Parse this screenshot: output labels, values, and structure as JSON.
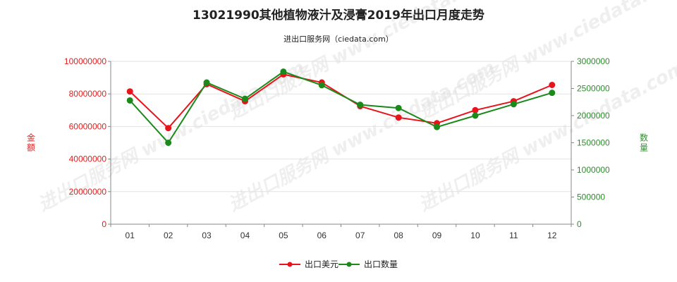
{
  "chart_data": {
    "type": "line",
    "title": "13021990其他植物液汁及浸膏2019年出口月度走势",
    "subtitle": "进出口服务网（ciedata.com）",
    "watermark": "进出口服务网 www.ciedata.com",
    "categories": [
      "01",
      "02",
      "03",
      "04",
      "05",
      "06",
      "07",
      "08",
      "09",
      "10",
      "11",
      "12"
    ],
    "y_left": {
      "label": "金额",
      "range": [
        0,
        100000000
      ],
      "ticks": [
        "0",
        "20000000",
        "40000000",
        "60000000",
        "80000000",
        "100000000"
      ],
      "color": "#e02020"
    },
    "y_right": {
      "label": "数量",
      "range": [
        0,
        3000000
      ],
      "ticks": [
        "0",
        "500000",
        "1000000",
        "1500000",
        "2000000",
        "2500000",
        "3000000"
      ],
      "color": "#2e8b2e"
    },
    "grid": true,
    "legend_position": "bottom",
    "series": [
      {
        "name": "出口美元",
        "axis": "left",
        "color": "#e8141b",
        "values": [
          81500000,
          59000000,
          86000000,
          75500000,
          92000000,
          87000000,
          72500000,
          65500000,
          62000000,
          70000000,
          75500000,
          85500000
        ]
      },
      {
        "name": "出口数量",
        "axis": "right",
        "color": "#1a8a1a",
        "values": [
          2280000,
          1500000,
          2610000,
          2310000,
          2810000,
          2560000,
          2200000,
          2140000,
          1790000,
          2000000,
          2210000,
          2420000
        ]
      }
    ]
  }
}
